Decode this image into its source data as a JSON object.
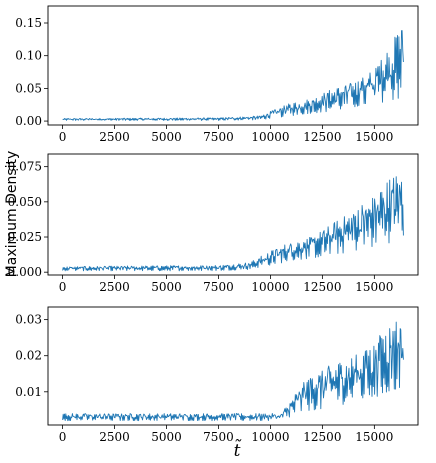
{
  "figure": {
    "ylabel": "Maximum Density",
    "xlabel": "t̃"
  },
  "colors": {
    "series": "#1f77b4",
    "axes": "#000000"
  },
  "chart_data": [
    {
      "type": "line",
      "xlim": [
        -700,
        17100
      ],
      "ylim": [
        -0.006,
        0.176
      ],
      "xticks": [
        0,
        2500,
        5000,
        7500,
        10000,
        12500,
        15000
      ],
      "xticklabels": [
        "0",
        "2500",
        "5000",
        "7500",
        "10000",
        "12500",
        "15000"
      ],
      "yticks": [
        0.0,
        0.05,
        0.1,
        0.15
      ],
      "yticklabels": [
        "0.00",
        "0.05",
        "0.10",
        "0.15"
      ],
      "x_range": [
        0,
        16400
      ],
      "envelope": {
        "x": [
          0,
          7500,
          9500,
          10000,
          11000,
          12000,
          13000,
          14000,
          15000,
          15500,
          16000,
          16400
        ],
        "lower": [
          0.001,
          0.001,
          0.002,
          0.004,
          0.008,
          0.012,
          0.015,
          0.02,
          0.025,
          0.03,
          0.032,
          0.035
        ],
        "upper": [
          0.004,
          0.005,
          0.008,
          0.015,
          0.028,
          0.035,
          0.05,
          0.06,
          0.08,
          0.11,
          0.13,
          0.16
        ]
      },
      "grid": false
    },
    {
      "type": "line",
      "xlim": [
        -700,
        17100
      ],
      "ylim": [
        -0.002,
        0.084
      ],
      "xticks": [
        0,
        2500,
        5000,
        7500,
        10000,
        12500,
        15000
      ],
      "xticklabels": [
        "0",
        "2500",
        "5000",
        "7500",
        "10000",
        "12500",
        "15000"
      ],
      "yticks": [
        0.0,
        0.025,
        0.05,
        0.075
      ],
      "yticklabels": [
        "0.000",
        "0.025",
        "0.050",
        "0.075"
      ],
      "x_range": [
        0,
        16400
      ],
      "envelope": {
        "x": [
          0,
          7500,
          9000,
          10000,
          11000,
          12000,
          13000,
          14000,
          15000,
          15500,
          16000,
          16400
        ],
        "lower": [
          0.001,
          0.001,
          0.002,
          0.005,
          0.008,
          0.01,
          0.012,
          0.015,
          0.018,
          0.02,
          0.022,
          0.025
        ],
        "upper": [
          0.004,
          0.005,
          0.007,
          0.015,
          0.022,
          0.025,
          0.035,
          0.045,
          0.055,
          0.065,
          0.07,
          0.075
        ]
      },
      "grid": false
    },
    {
      "type": "line",
      "xlim": [
        -700,
        17100
      ],
      "ylim": [
        0.0008,
        0.0335
      ],
      "xticks": [
        0,
        2500,
        5000,
        7500,
        10000,
        12500,
        15000
      ],
      "xticklabels": [
        "0",
        "2500",
        "5000",
        "7500",
        "10000",
        "12500",
        "15000"
      ],
      "yticks": [
        0.01,
        0.02,
        0.03
      ],
      "yticklabels": [
        "0.01",
        "0.02",
        "0.03"
      ],
      "x_range": [
        0,
        16400
      ],
      "envelope": {
        "x": [
          0,
          10500,
          11000,
          11500,
          12000,
          12500,
          13000,
          14000,
          15000,
          15500,
          16000,
          16400
        ],
        "lower": [
          0.002,
          0.002,
          0.003,
          0.004,
          0.005,
          0.005,
          0.006,
          0.007,
          0.008,
          0.009,
          0.01,
          0.012
        ],
        "upper": [
          0.004,
          0.004,
          0.008,
          0.012,
          0.015,
          0.016,
          0.018,
          0.02,
          0.024,
          0.028,
          0.031,
          0.03
        ]
      },
      "grid": false
    }
  ]
}
